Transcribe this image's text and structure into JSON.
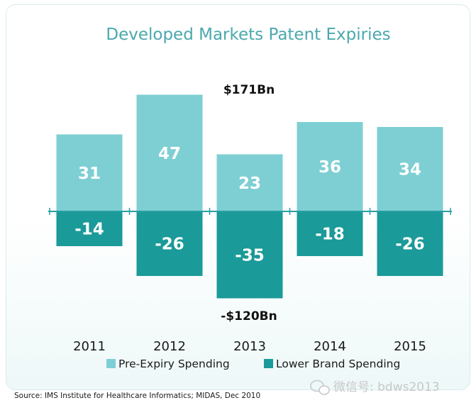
{
  "chart_data": {
    "type": "bar",
    "title": "Developed Markets Patent Expiries",
    "categories": [
      "2011",
      "2012",
      "2013",
      "2014",
      "2015"
    ],
    "series": [
      {
        "name": "Pre-Expiry Spending",
        "values": [
          31,
          47,
          23,
          36,
          34
        ],
        "color": "#7ecfd3"
      },
      {
        "name": "Lower Brand Spending",
        "values": [
          -14,
          -26,
          -35,
          -18,
          -26
        ],
        "color": "#1a9a99"
      }
    ],
    "value_labels": {
      "positive": [
        "31",
        "47",
        "23",
        "36",
        "34"
      ],
      "negative": [
        "-14",
        "-26",
        "-35",
        "-18",
        "-26"
      ]
    },
    "annotations": {
      "top_total": "$171Bn",
      "bottom_total": "-$120Bn"
    },
    "ylim": [
      -35,
      47
    ],
    "stacked": true,
    "grid": false,
    "legend_position": "bottom",
    "baseline_color": "#2a9fa3"
  },
  "source": "Source: IMS Institute for Healthcare Informatics; MIDAS, Dec 2010",
  "watermark": {
    "icon": "wechat-icon",
    "text": "微信号: bdws2013"
  }
}
